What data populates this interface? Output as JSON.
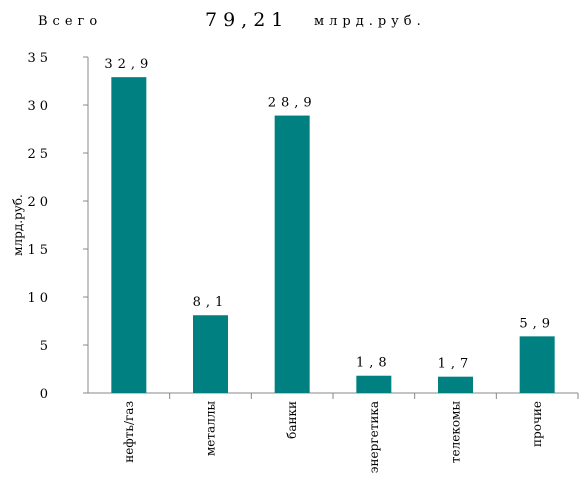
{
  "header": {
    "total_label": "Всего",
    "total_value": "79,21",
    "total_unit": "млрд.руб."
  },
  "chart_data": {
    "type": "bar",
    "title": "",
    "xlabel": "",
    "ylabel": "млрд.руб.",
    "categories": [
      "нефть/газ",
      "металлы",
      "банки",
      "энергетика",
      "телекомы",
      "прочие"
    ],
    "values": [
      32.9,
      8.1,
      28.9,
      1.8,
      1.7,
      5.9
    ],
    "value_labels": [
      "32,9",
      "8,1",
      "28,9",
      "1,8",
      "1,7",
      "5,9"
    ],
    "ylim": [
      0,
      35
    ],
    "yticks": [
      0,
      5,
      10,
      15,
      20,
      25,
      30,
      35
    ],
    "grid": false,
    "legend": "none",
    "bar_color": "#008080"
  }
}
